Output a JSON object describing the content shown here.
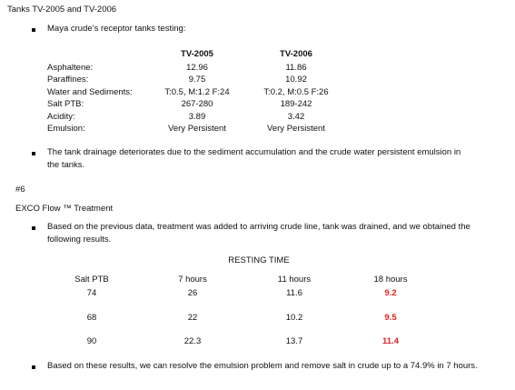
{
  "heading": "Tanks TV-2005 and TV-2006",
  "bullet1": "Maya crude’s receptor tanks testing:",
  "tanks_table": {
    "columns": [
      "TV-2005",
      "TV-2006"
    ],
    "rows": [
      {
        "label": "Asphaltene:",
        "values": [
          "12.96",
          "11.86"
        ]
      },
      {
        "label": "Paraffines:",
        "values": [
          "9.75",
          "10.92"
        ]
      },
      {
        "label": "Water and Sediments:",
        "values": [
          "T:0.5, M:1.2 F:24",
          "T:0.2, M:0.5 F:26"
        ]
      },
      {
        "label": "Salt PTB:",
        "values": [
          "267-280",
          "189-242"
        ]
      },
      {
        "label": "Acidity:",
        "values": [
          "3.89",
          "3.42"
        ]
      },
      {
        "label": "Emulsion:",
        "values": [
          "Very Persistent",
          "Very Persistent"
        ]
      }
    ]
  },
  "bullet2_line1": "The tank drainage deteriorates due to the sediment accumulation and the crude water persistent emulsion in",
  "bullet2_line2": "the tanks.",
  "section_number": "#6",
  "treatment_title": "EXCO Flow ™ Treatment",
  "bullet3_line1": "Based on the previous data, treatment was added to arriving crude line, tank was drained, and we obtained the",
  "bullet3_line2": "following results.",
  "results_table": {
    "group_header": "RESTING TIME",
    "headers": [
      "Salt PTB",
      "7 hours",
      "11 hours",
      "18 hours"
    ],
    "rows": [
      [
        "74",
        "26",
        "11.6",
        "9.2"
      ],
      [
        "68",
        "22",
        "10.2",
        "9.5"
      ],
      [
        "90",
        "22.3",
        "13.7",
        "11.4"
      ]
    ],
    "highlight_color": "#e0221f"
  },
  "bullet4": "Based on these results, we can resolve the emulsion problem and remove salt in crude up to a 74.9% in 7 hours."
}
